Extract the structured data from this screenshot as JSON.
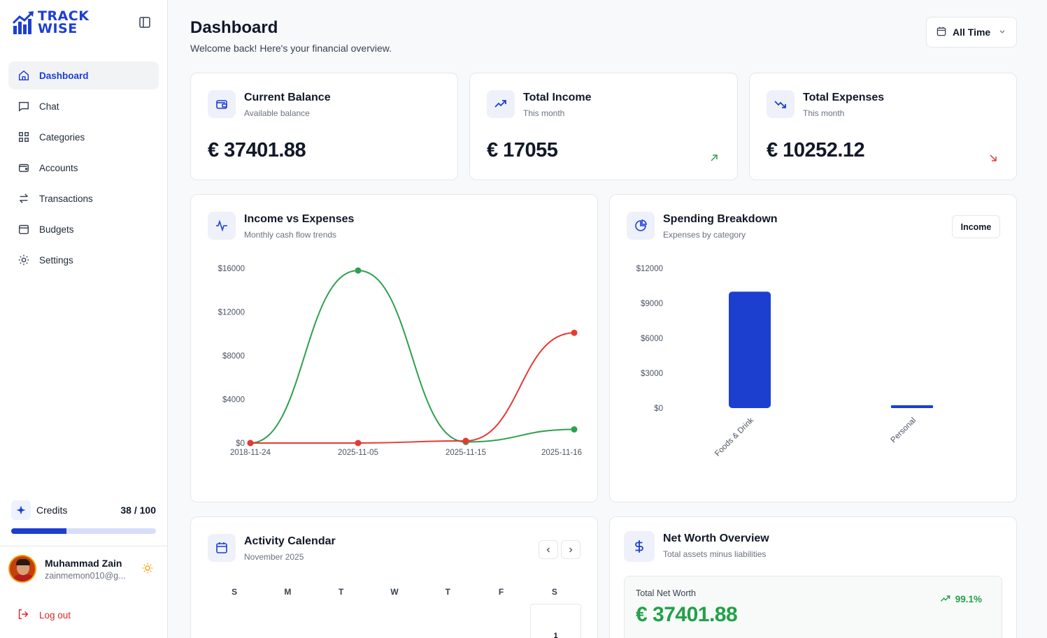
{
  "app": {
    "logo_line1": "TRACK",
    "logo_line2": "WISE"
  },
  "sidebar": {
    "items": [
      {
        "label": "Dashboard",
        "icon": "home-icon",
        "active": true
      },
      {
        "label": "Chat",
        "icon": "chat-icon"
      },
      {
        "label": "Categories",
        "icon": "grid-icon"
      },
      {
        "label": "Accounts",
        "icon": "wallet-icon"
      },
      {
        "label": "Transactions",
        "icon": "arrows-swap-icon"
      },
      {
        "label": "Budgets",
        "icon": "budget-icon"
      },
      {
        "label": "Settings",
        "icon": "gear-icon"
      }
    ],
    "credits": {
      "label": "Credits",
      "count": "38 / 100",
      "used": 38,
      "total": 100
    },
    "user": {
      "name": "Muhammad Zain",
      "email": "zainmemon010@g..."
    },
    "logout_label": "Log out"
  },
  "header": {
    "title": "Dashboard",
    "subtitle": "Welcome back! Here's your financial overview.",
    "range_label": "All Time"
  },
  "stats": {
    "balance": {
      "title": "Current Balance",
      "sub": "Available balance",
      "value": "€ 37401.88"
    },
    "income": {
      "title": "Total Income",
      "sub": "This month",
      "value": "€ 17055"
    },
    "expenses": {
      "title": "Total Expenses",
      "sub": "This month",
      "value": "€ 10252.12"
    }
  },
  "income_chart": {
    "title": "Income vs Expenses",
    "subtitle": "Monthly cash flow trends"
  },
  "spending": {
    "title": "Spending Breakdown",
    "subtitle": "Expenses by category",
    "toggle_label": "Income"
  },
  "calendar": {
    "title": "Activity Calendar",
    "month": "November 2025",
    "days": [
      "S",
      "M",
      "T",
      "W",
      "T",
      "F",
      "S"
    ],
    "first_day": "1"
  },
  "networth": {
    "title": "Net Worth Overview",
    "subtitle": "Total assets minus liabilities",
    "label": "Total Net Worth",
    "value": "€ 37401.88",
    "change": "99.1%"
  },
  "colors": {
    "accent": "#1d3fd0",
    "income": "#2ea04f",
    "expense": "#e53935"
  },
  "chart_data": [
    {
      "type": "line",
      "x": [
        "2018-11-24",
        "2025-11-05",
        "2025-11-15",
        "2025-11-16"
      ],
      "series": [
        {
          "values": [
            0,
            15800,
            100,
            1250
          ],
          "color": "#2ea04f"
        },
        {
          "values": [
            0,
            0,
            200,
            10100
          ],
          "color": "#e53935"
        }
      ],
      "yticks": [
        "$0",
        "$4000",
        "$8000",
        "$12000",
        "$16000"
      ],
      "ylim": [
        0,
        16000
      ],
      "grid": false
    },
    {
      "type": "bar",
      "categories": [
        "Foods & Drink",
        "Personal"
      ],
      "values": [
        10000,
        250
      ],
      "yticks": [
        "$0",
        "$3000",
        "$6000",
        "$9000",
        "$12000"
      ],
      "ylim": [
        0,
        12000
      ],
      "color": "#1d3fd0",
      "grid": false
    }
  ]
}
